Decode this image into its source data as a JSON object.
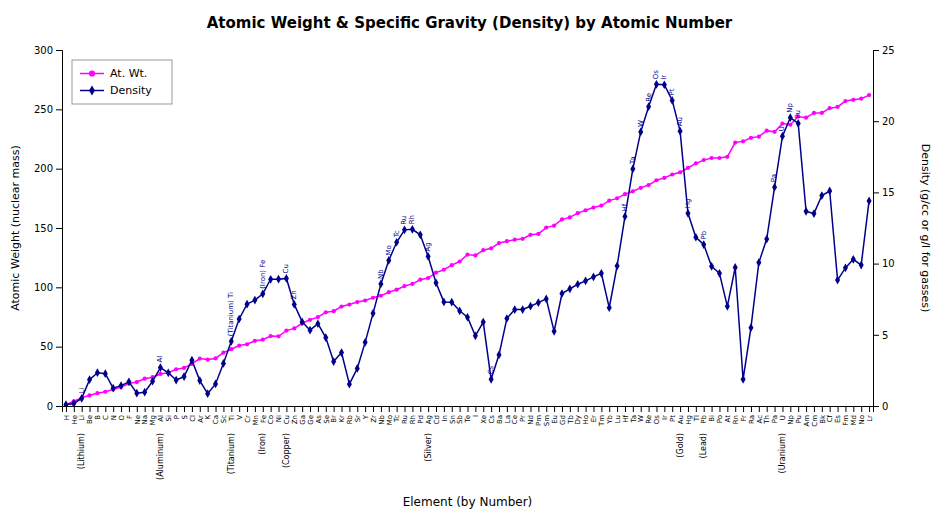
{
  "chart_data": {
    "type": "line",
    "title": "Atomic Weight & Specific Gravity (Density) by Atomic Number",
    "x_label": "Element (by Number)",
    "y_label": "Atomic Weight (nuclear mass)",
    "y2_label": "Density (g/cc or g/l for gasses)",
    "categories": [
      "H",
      "He",
      "Li",
      "Be",
      "B",
      "C",
      "N",
      "O",
      "F",
      "Ne",
      "Na",
      "Mg",
      "Al",
      "Si",
      "P",
      "S",
      "Cl",
      "Ar",
      "K",
      "Ca",
      "Sc",
      "Ti",
      "V",
      "Cr",
      "Mn",
      "Fe",
      "Co",
      "Ni",
      "Cu",
      "Zn",
      "Ga",
      "Ge",
      "As",
      "Se",
      "Br",
      "Kr",
      "Rb",
      "Sr",
      "Y",
      "Zr",
      "Nb",
      "Mo",
      "Tc",
      "Ru",
      "Rh",
      "Pd",
      "Ag",
      "Cd",
      "In",
      "Sn",
      "Sb",
      "Te",
      "I",
      "Xe",
      "Cs",
      "Ba",
      "La",
      "Ce",
      "Pr",
      "Nd",
      "Pm",
      "Sm",
      "Eu",
      "Gd",
      "Tb",
      "Dy",
      "Ho",
      "Er",
      "Tm",
      "Yb",
      "Lu",
      "Hf",
      "Ta",
      "W",
      "Re",
      "Os",
      "Ir",
      "Pt",
      "Au",
      "Hg",
      "Tl",
      "Pb",
      "Bi",
      "Po",
      "At",
      "Rn",
      "Fr",
      "Ra",
      "Ac",
      "Th",
      "Pa",
      "U",
      "Np",
      "Pu",
      "Am",
      "Cm",
      "Bk",
      "Cf",
      "Es",
      "Fm",
      "Md",
      "No",
      "Lr"
    ],
    "series": [
      {
        "name": "At. Wt.",
        "color": "#ff00ff",
        "marker": "circle",
        "values": [
          1.008,
          4.003,
          6.941,
          9.012,
          10.811,
          12.011,
          14.007,
          15.999,
          18.998,
          20.18,
          22.99,
          24.305,
          26.982,
          28.086,
          30.974,
          32.065,
          35.453,
          39.948,
          39.098,
          40.078,
          44.956,
          47.867,
          50.942,
          51.996,
          54.938,
          55.845,
          58.933,
          58.693,
          63.546,
          65.38,
          69.723,
          72.64,
          74.922,
          78.96,
          79.904,
          83.798,
          85.468,
          87.62,
          88.906,
          91.224,
          92.906,
          95.96,
          98.0,
          101.07,
          102.906,
          106.42,
          107.868,
          112.411,
          114.818,
          118.71,
          121.76,
          127.6,
          126.904,
          131.293,
          132.905,
          137.327,
          138.905,
          140.116,
          140.908,
          144.242,
          145.0,
          150.36,
          151.964,
          157.25,
          158.925,
          162.5,
          164.93,
          167.259,
          168.934,
          173.054,
          174.967,
          178.49,
          180.948,
          183.84,
          186.207,
          190.23,
          192.217,
          195.084,
          196.967,
          200.59,
          204.383,
          207.2,
          208.98,
          209.0,
          210.0,
          222.0,
          223.0,
          226.0,
          227.0,
          232.038,
          231.036,
          238.029,
          237.0,
          244.0,
          243.0,
          247.0,
          247.0,
          251.0,
          252.0,
          257.0,
          258.0,
          259.0,
          262.0
        ]
      },
      {
        "name": "Density",
        "color": "#00008b",
        "marker": "diamond",
        "axis": "y2",
        "values": [
          0.0899,
          0.1785,
          0.534,
          1.848,
          2.34,
          2.267,
          1.251,
          1.429,
          1.696,
          0.9,
          0.971,
          1.738,
          2.698,
          2.33,
          1.823,
          2.067,
          3.214,
          1.784,
          0.862,
          1.55,
          2.989,
          4.54,
          6.11,
          7.15,
          7.44,
          7.874,
          8.9,
          8.908,
          8.96,
          7.133,
          5.907,
          5.323,
          5.776,
          4.809,
          3.122,
          3.749,
          1.532,
          2.64,
          4.469,
          6.506,
          8.57,
          10.22,
          11.5,
          12.37,
          12.41,
          12.02,
          10.501,
          8.65,
          7.31,
          7.287,
          6.685,
          6.232,
          4.93,
          5.894,
          1.873,
          3.594,
          6.145,
          6.77,
          6.773,
          7.007,
          7.26,
          7.52,
          5.243,
          7.9,
          8.229,
          8.55,
          8.79,
          9.066,
          9.32,
          6.9,
          9.84,
          13.31,
          16.65,
          19.25,
          21.02,
          22.59,
          22.56,
          21.46,
          19.3,
          13.534,
          11.85,
          11.34,
          9.807,
          9.32,
          7.0,
          9.73,
          1.87,
          5.5,
          10.07,
          11.72,
          15.37,
          18.95,
          20.25,
          19.84,
          13.67,
          13.51,
          14.78,
          15.1,
          8.84,
          9.7,
          10.3,
          9.9,
          14.4
        ]
      }
    ],
    "ylim": [
      0,
      300
    ],
    "yticks": [
      0,
      50,
      100,
      150,
      200,
      250,
      300
    ],
    "y2lim": [
      0,
      25
    ],
    "y2ticks": [
      0,
      5,
      10,
      15,
      20,
      25
    ],
    "grid": false,
    "legend": "upper left",
    "annotations": [
      {
        "text": "Li",
        "category": "Li",
        "series": "Density"
      },
      {
        "text": "Al",
        "category": "Al",
        "series": "Density"
      },
      {
        "text": "(Titanium) Ti",
        "category": "Ti",
        "series": "Density"
      },
      {
        "text": "(Iron) Fe",
        "category": "Fe",
        "series": "Density"
      },
      {
        "text": "Cu",
        "category": "Cu",
        "series": "Density"
      },
      {
        "text": "Zn",
        "category": "Zn",
        "series": "Density"
      },
      {
        "text": "Nb",
        "category": "Nb",
        "series": "Density"
      },
      {
        "text": "Mo",
        "category": "Mo",
        "series": "Density"
      },
      {
        "text": "Tc",
        "category": "Tc",
        "series": "Density"
      },
      {
        "text": "Ru",
        "category": "Ru",
        "series": "Density"
      },
      {
        "text": "Rh",
        "category": "Rh",
        "series": "Density"
      },
      {
        "text": "Ag",
        "category": "Ag",
        "series": "Density"
      },
      {
        "text": "Cs",
        "category": "Cs",
        "series": "Density"
      },
      {
        "text": "Hf",
        "category": "Hf",
        "series": "Density"
      },
      {
        "text": "Ta",
        "category": "Ta",
        "series": "Density"
      },
      {
        "text": "W",
        "category": "W",
        "series": "Density"
      },
      {
        "text": "Re",
        "category": "Re",
        "series": "Density"
      },
      {
        "text": "Os",
        "category": "Os",
        "series": "Density"
      },
      {
        "text": "Ir",
        "category": "Ir",
        "series": "Density"
      },
      {
        "text": "Pt",
        "category": "Pt",
        "series": "Density"
      },
      {
        "text": "Au",
        "category": "Au",
        "series": "Density"
      },
      {
        "text": "Hg",
        "category": "Hg",
        "series": "Density"
      },
      {
        "text": "Pb",
        "category": "Pb",
        "series": "Density"
      },
      {
        "text": "Pa",
        "category": "Pa",
        "series": "Density"
      },
      {
        "text": "U",
        "category": "U",
        "series": "Density"
      },
      {
        "text": "Np",
        "category": "Np",
        "series": "Density"
      },
      {
        "text": "Pu",
        "category": "Pu",
        "series": "Density"
      },
      {
        "text": "(Lithium)",
        "category": "Li"
      },
      {
        "text": "(Aluminum)",
        "category": "Al"
      },
      {
        "text": "(Titanium)",
        "category": "Ti"
      },
      {
        "text": "(Iron)",
        "category": "Fe"
      },
      {
        "text": "(Copper)",
        "category": "Cu"
      },
      {
        "text": "(Silver)",
        "category": "Ag"
      },
      {
        "text": "(Gold)",
        "category": "Au"
      },
      {
        "text": "(Lead)",
        "category": "Pb"
      },
      {
        "text": "(Uranium)",
        "category": "U"
      }
    ]
  }
}
